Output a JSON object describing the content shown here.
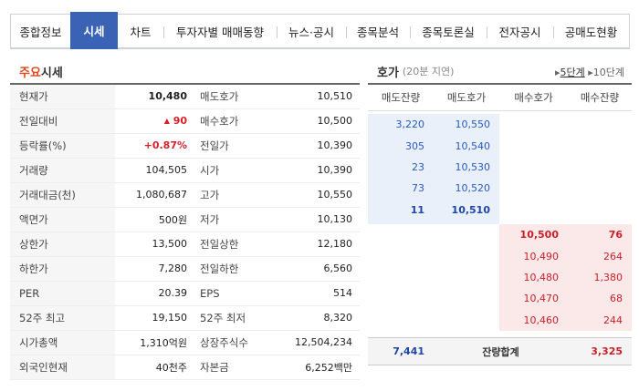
{
  "tabs": [
    "종합정보",
    "시세",
    "차트",
    "투자자별 매매동향",
    "뉴스·공시",
    "종목분석",
    "종목토론실",
    "전자공시",
    "공매도현황"
  ],
  "active_tab": "시세",
  "main": {
    "title_hl": "주요",
    "title_rest": "시세",
    "rows": [
      {
        "l1": "현재가",
        "v1": "10,480",
        "l2": "매도호가",
        "v2": "10,510"
      },
      {
        "l1": "전일대비",
        "v1": "90",
        "arrow": "▲",
        "l2": "매수호가",
        "v2": "10,500"
      },
      {
        "l1": "등락률(%)",
        "v1": "+0.87%",
        "l2": "전일가",
        "v2": "10,390"
      },
      {
        "l1": "거래량",
        "v1": "104,505",
        "l2": "시가",
        "v2": "10,390"
      },
      {
        "l1": "거래대금(천)",
        "v1": "1,080,687",
        "l2": "고가",
        "v2": "10,550"
      },
      {
        "l1": "액면가",
        "v1": "500원",
        "l2": "저가",
        "v2": "10,130"
      },
      {
        "l1": "상한가",
        "v1": "13,500",
        "l2": "전일상한",
        "v2": "12,180"
      },
      {
        "l1": "하한가",
        "v1": "7,280",
        "l2": "전일하한",
        "v2": "6,560"
      },
      {
        "l1": "PER",
        "v1": "20.39",
        "l2": "EPS",
        "v2": "514"
      },
      {
        "l1": "52주 최고",
        "v1": "19,150",
        "l2": "52주 최저",
        "v2": "8,320"
      },
      {
        "l1": "시가총액",
        "v1": "1,310억원",
        "l2": "상장주식수",
        "v2": "12,504,234"
      },
      {
        "l1": "외국인현재",
        "v1": "40천주",
        "l2": "자본금",
        "v2": "6,252백만"
      }
    ]
  },
  "order": {
    "title": "호가",
    "delay": "(20분 지연)",
    "level5": "5단계",
    "level10": "10단계",
    "arrow": "▸",
    "headers": [
      "매도잔량",
      "매도호가",
      "매수호가",
      "매수잔량"
    ],
    "asks": [
      {
        "qty": "3,220",
        "price": "10,550"
      },
      {
        "qty": "305",
        "price": "10,540"
      },
      {
        "qty": "23",
        "price": "10,530"
      },
      {
        "qty": "73",
        "price": "10,520"
      },
      {
        "qty": "11",
        "price": "10,510"
      }
    ],
    "bids": [
      {
        "price": "10,500",
        "qty": "76"
      },
      {
        "price": "10,490",
        "qty": "264"
      },
      {
        "price": "10,480",
        "qty": "1,380"
      },
      {
        "price": "10,470",
        "qty": "68"
      },
      {
        "price": "10,460",
        "qty": "244"
      }
    ],
    "total_label": "잔량합계",
    "total_ask": "7,441",
    "total_bid": "3,325"
  },
  "colors": {
    "accent": "#3a63b6",
    "up": "#d8202b",
    "ask_bg": "#e9f0fa",
    "bid_bg": "#fbe8e8"
  }
}
